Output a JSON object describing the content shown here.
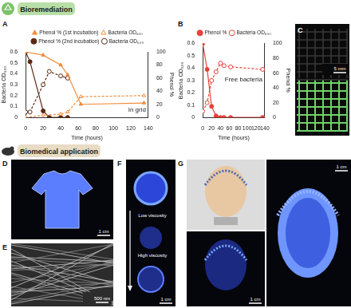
{
  "sections": [
    {
      "title": "Bioremediation"
    },
    {
      "title": "Biomedical application"
    }
  ],
  "chart_data": [
    {
      "type": "line",
      "panel_label": "A",
      "annotation": "In grid",
      "x_label": "Time (hours)",
      "y_label": "Bacteria OD₆₀₀",
      "y2_label": "Phenol %",
      "xlim": [
        0,
        140
      ],
      "xticks": [
        0,
        20,
        40,
        60,
        80,
        100,
        120,
        140
      ],
      "ylim": [
        0,
        0.6
      ],
      "yticks": [
        0,
        0.1,
        0.2,
        0.3,
        0.4,
        0.5,
        0.6
      ],
      "y2lim": [
        0,
        100
      ],
      "y2ticks": [
        0,
        20,
        40,
        60,
        80,
        100
      ],
      "grid": false,
      "legend": "top",
      "series": [
        {
          "name": "Phenol % (1st incubation)",
          "axis": "y2",
          "color": "#f28c3a",
          "marker": "triangle",
          "line_style": "solid",
          "x": [
            0,
            20,
            40,
            48,
            63,
            135
          ],
          "values": [
            100,
            95,
            80,
            65,
            20,
            22
          ]
        },
        {
          "name": "Bacteria OD₆₀₀",
          "color": "#f28c3a",
          "marker": "triangle_open",
          "line_style": "dashed",
          "x": [
            0,
            20,
            40,
            48,
            63,
            135
          ],
          "values": [
            0,
            0.02,
            0.03,
            0.05,
            0.19,
            0.2
          ]
        },
        {
          "name": "Phenol % (2nd incubation)",
          "axis": "y2",
          "color": "#5a2a12",
          "marker": "circle",
          "line_style": "solid",
          "x": [
            0,
            5,
            20,
            27,
            40,
            48
          ],
          "values": [
            100,
            85,
            10,
            0,
            0,
            0
          ]
        },
        {
          "name": "Bacteria OD₆₀₀",
          "color": "#5a2a12",
          "marker": "circle_open",
          "line_style": "dashed",
          "x": [
            0,
            5,
            20,
            27,
            40,
            48
          ],
          "values": [
            0.05,
            0.05,
            0.3,
            0.42,
            0.38,
            0.36
          ]
        }
      ]
    },
    {
      "type": "line",
      "panel_label": "B",
      "annotation": "Free bacteria",
      "x_label": "Time (hours)",
      "y_label": "Bacteria OD₆₀₀",
      "y2_label": "Phenol %",
      "xlim": [
        0,
        140
      ],
      "xticks": [
        0,
        20,
        40,
        60,
        80,
        100,
        120,
        140
      ],
      "ylim": [
        0,
        0.6
      ],
      "yticks": [
        0,
        0.1,
        0.2,
        0.3,
        0.4,
        0.5,
        0.6
      ],
      "y2lim": [
        0,
        100
      ],
      "y2ticks": [
        0,
        20,
        40,
        60,
        80,
        100
      ],
      "grid": false,
      "legend": "top",
      "series": [
        {
          "name": "Phenol %",
          "axis": "y2",
          "color": "#e8413a",
          "marker": "circle",
          "line_style": "solid",
          "x": [
            0,
            10,
            20,
            30,
            40,
            48,
            63,
            135
          ],
          "values": [
            100,
            65,
            15,
            2,
            0,
            0,
            0,
            0
          ]
        },
        {
          "name": "Bacteria OD₆₀₀",
          "color": "#e8413a",
          "marker": "circle_open",
          "line_style": "dashed",
          "x": [
            0,
            10,
            20,
            30,
            40,
            48,
            63,
            135
          ],
          "values": [
            0.05,
            0.12,
            0.3,
            0.37,
            0.44,
            0.42,
            0.41,
            0.39
          ]
        }
      ]
    }
  ],
  "panels": {
    "C": {
      "label": "C",
      "scale_bar": "5 mm"
    },
    "D": {
      "label": "D",
      "scale_bar": "1 cm"
    },
    "E": {
      "label": "E",
      "scale_bar": "500 nm"
    },
    "F": {
      "label": "F",
      "scale_bar": "1 cm",
      "annotations": [
        "Low viscosity",
        "High viscosity"
      ]
    },
    "G": {
      "label": "G",
      "scale_bars": [
        "1 cm",
        "1 cm"
      ]
    }
  }
}
